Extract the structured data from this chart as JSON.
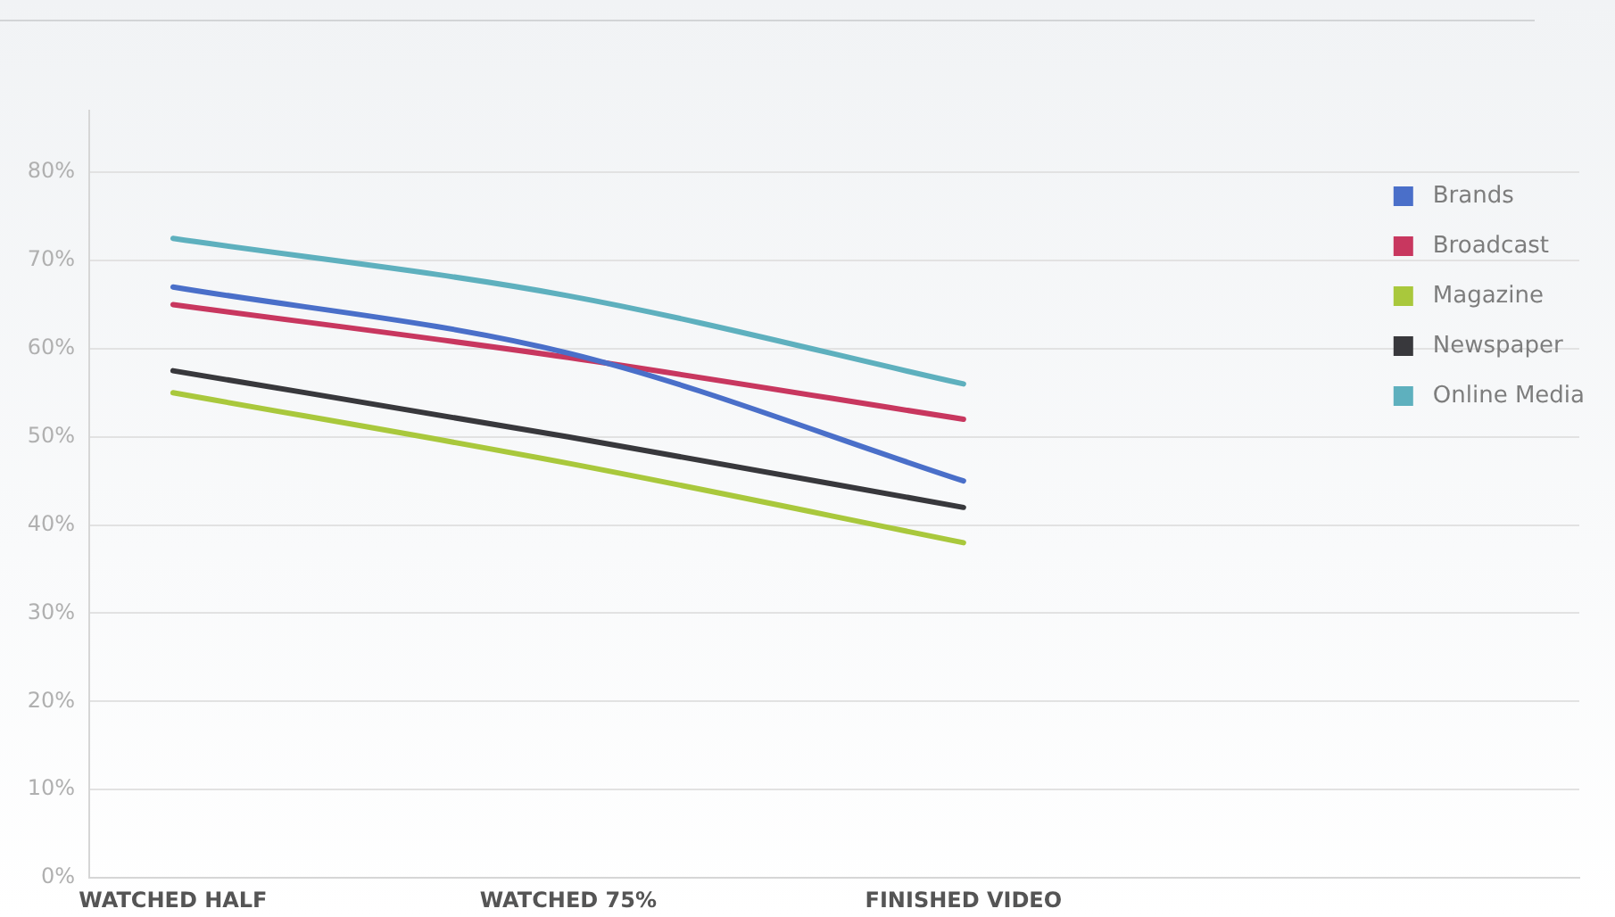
{
  "chart_data": {
    "type": "line",
    "categories": [
      "WATCHED HALF",
      "WATCHED 75%",
      "FINISHED VIDEO"
    ],
    "series": [
      {
        "name": "Brands",
        "color": "#4a6fc9",
        "values": [
          67,
          59.5,
          45
        ]
      },
      {
        "name": "Broadcast",
        "color": "#c8375f",
        "values": [
          65,
          59,
          52
        ]
      },
      {
        "name": "Magazine",
        "color": "#a9c83c",
        "values": [
          55,
          47,
          38
        ]
      },
      {
        "name": "Newspaper",
        "color": "#38383c",
        "values": [
          57.5,
          50,
          42
        ]
      },
      {
        "name": "Online Media",
        "color": "#5eb0be",
        "values": [
          72.5,
          66,
          56
        ]
      }
    ],
    "ylim": [
      0,
      87
    ],
    "yticks": [
      {
        "value": 0,
        "label": "0%"
      },
      {
        "value": 10,
        "label": "10%"
      },
      {
        "value": 20,
        "label": "20%"
      },
      {
        "value": 30,
        "label": "30%"
      },
      {
        "value": 40,
        "label": "40%"
      },
      {
        "value": 50,
        "label": "50%"
      },
      {
        "value": 60,
        "label": "60%"
      },
      {
        "value": 70,
        "label": "70%"
      },
      {
        "value": 80,
        "label": "80%"
      }
    ],
    "grid": "y",
    "legend": "top right",
    "marker": "none"
  }
}
